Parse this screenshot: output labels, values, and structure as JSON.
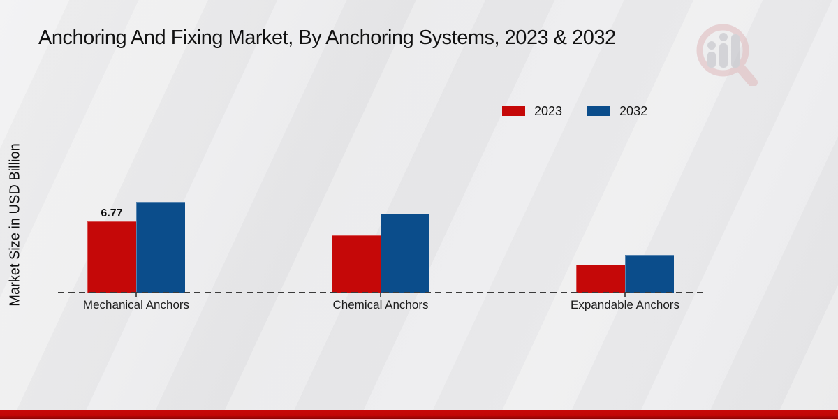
{
  "chart_data": {
    "type": "bar",
    "title": "Anchoring And Fixing Market, By Anchoring Systems, 2023 & 2032",
    "ylabel": "Market Size in USD Billion",
    "xlabel": "",
    "categories": [
      "Mechanical Anchors",
      "Chemical Anchors",
      "Expandable Anchors"
    ],
    "series": [
      {
        "name": "2023",
        "color": "#c50808",
        "values": [
          6.77,
          5.45,
          2.65
        ]
      },
      {
        "name": "2032",
        "color": "#0b4d8b",
        "values": [
          8.63,
          7.5,
          3.6
        ]
      }
    ],
    "data_labels": [
      {
        "series_index": 0,
        "category_index": 0,
        "text": "6.77"
      }
    ],
    "ylim": [
      0,
      10
    ],
    "grid": false,
    "legend_position": "top-right",
    "baseline_style": "dashed"
  },
  "branding": {
    "watermark": "magnifier-bar-chart-logo",
    "footer_color": "#c30707"
  }
}
